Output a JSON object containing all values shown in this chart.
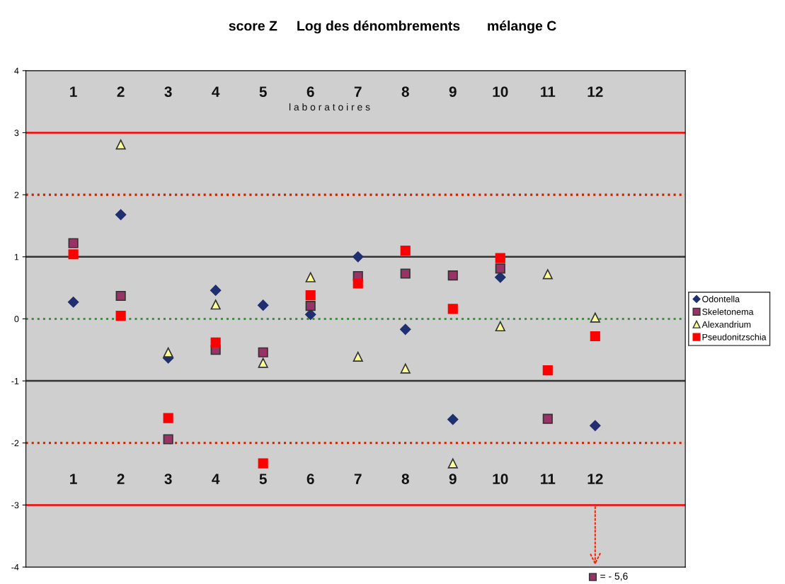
{
  "chart_data": {
    "type": "scatter",
    "title": "score Z     Log des dénombrements       mélange C",
    "xlabel": "l a b o r a t o i r e s",
    "categories": [
      "1",
      "2",
      "3",
      "4",
      "5",
      "6",
      "7",
      "8",
      "9",
      "10",
      "11",
      "12"
    ],
    "series": [
      {
        "name": "Odontella",
        "color": "#1f2f6f",
        "marker": "diamond",
        "values": [
          0.27,
          1.68,
          -0.63,
          0.46,
          0.22,
          0.07,
          1.0,
          -0.17,
          -1.62,
          0.67,
          null,
          -1.72
        ]
      },
      {
        "name": "Skeletonema",
        "color": "#993366",
        "marker": "square",
        "values": [
          1.22,
          0.37,
          -1.94,
          -0.5,
          -0.54,
          0.21,
          0.69,
          0.73,
          0.7,
          0.81,
          -1.61,
          null
        ]
      },
      {
        "name": "Alexandrium",
        "color": "#ffff99",
        "marker": "triangle",
        "values": [
          null,
          2.81,
          -0.54,
          0.23,
          -0.71,
          0.67,
          -0.61,
          -0.8,
          -2.33,
          -0.12,
          0.72,
          0.02
        ]
      },
      {
        "name": "Pseudonitzschia",
        "color": "#ff0000",
        "marker": "square",
        "values": [
          1.04,
          0.05,
          -1.6,
          -0.38,
          -2.33,
          0.38,
          0.57,
          1.1,
          0.16,
          0.98,
          -0.83,
          -0.28
        ]
      }
    ],
    "ylim": [
      -4,
      4
    ],
    "yticks": [
      -4,
      -3,
      -2,
      -1,
      0,
      1,
      2,
      3,
      4
    ],
    "ref_lines": [
      {
        "axis": "y",
        "value": 3,
        "color": "#ff0000",
        "line_style": "solid"
      },
      {
        "axis": "y",
        "value": 2,
        "color": "#cc2200",
        "line_style": "dotted"
      },
      {
        "axis": "y",
        "value": 1,
        "color": "#333333",
        "line_style": "solid"
      },
      {
        "axis": "y",
        "value": 0,
        "color": "#339933",
        "line_style": "dotted"
      },
      {
        "axis": "y",
        "value": -1,
        "color": "#333333",
        "line_style": "solid"
      },
      {
        "axis": "y",
        "value": -2,
        "color": "#cc2200",
        "line_style": "dotted"
      },
      {
        "axis": "y",
        "value": -3,
        "color": "#ff0000",
        "line_style": "solid"
      }
    ],
    "annotations": [
      {
        "text": "= - 5,6",
        "x": "12",
        "y": -3
      }
    ],
    "legend": "right",
    "grid": false
  }
}
